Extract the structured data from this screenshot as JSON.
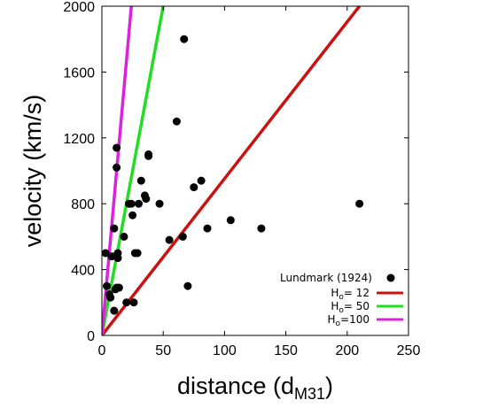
{
  "chart_data": {
    "type": "scatter",
    "xlabel": "distance (d",
    "xlabel_sub": "M31",
    "xlabel_end": ")",
    "ylabel": "velocity (km/s)",
    "xlim": [
      0,
      250
    ],
    "ylim": [
      0,
      2000
    ],
    "xticks": [
      0,
      50,
      100,
      150,
      200,
      250
    ],
    "yticks": [
      0,
      400,
      800,
      1200,
      1600,
      2000
    ],
    "grid": false,
    "legend_position": "bottom-right",
    "colors": {
      "points": "#000000",
      "h12": "#cc1111",
      "h50": "#22dd22",
      "h100": "#dd22dd"
    },
    "series": [
      {
        "name": "Lundmark (1924)",
        "kind": "points",
        "points": [
          [
            3,
            500
          ],
          [
            4,
            300
          ],
          [
            6,
            250
          ],
          [
            7,
            230
          ],
          [
            8,
            480
          ],
          [
            10,
            650
          ],
          [
            10,
            150
          ],
          [
            11,
            280
          ],
          [
            12,
            1140
          ],
          [
            12,
            1020
          ],
          [
            12,
            290
          ],
          [
            13,
            500
          ],
          [
            13,
            470
          ],
          [
            14,
            290
          ],
          [
            18,
            600
          ],
          [
            20,
            200
          ],
          [
            22,
            800
          ],
          [
            24,
            800
          ],
          [
            25,
            730
          ],
          [
            26,
            200
          ],
          [
            27,
            500
          ],
          [
            29,
            500
          ],
          [
            30,
            800
          ],
          [
            32,
            940
          ],
          [
            35,
            850
          ],
          [
            36,
            830
          ],
          [
            38,
            1100
          ],
          [
            38,
            1090
          ],
          [
            47,
            800
          ],
          [
            55,
            580
          ],
          [
            61,
            1300
          ],
          [
            66,
            600
          ],
          [
            67,
            1800
          ],
          [
            70,
            300
          ],
          [
            75,
            900
          ],
          [
            81,
            940
          ],
          [
            86,
            650
          ],
          [
            105,
            700
          ],
          [
            130,
            650
          ],
          [
            210,
            800
          ]
        ]
      },
      {
        "name": "H",
        "sub": "o",
        "value": "=  12",
        "kind": "line",
        "slope": 9.5238
      },
      {
        "name": "H",
        "sub": "o",
        "value": "=  50",
        "kind": "line",
        "slope": 40
      },
      {
        "name": "H",
        "sub": "o",
        "value": "=100",
        "kind": "line",
        "slope": 83.33
      }
    ]
  }
}
